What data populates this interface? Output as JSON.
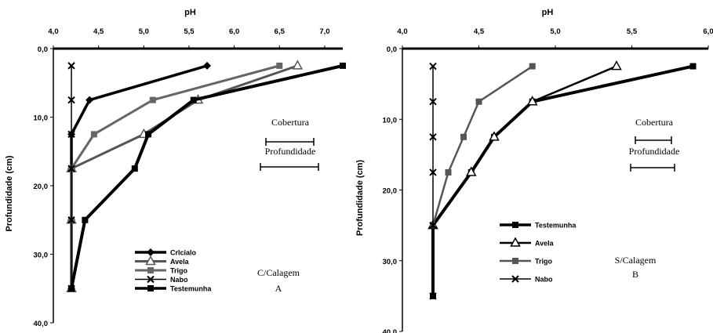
{
  "chart_data": [
    {
      "type": "line",
      "panel_label": "C/Calagem",
      "panel_letter": "A",
      "xlabel": "pH",
      "ylabel": "Profundidade (cm)",
      "xlim": [
        4.0,
        7.2
      ],
      "ylim": [
        0,
        40
      ],
      "xticks": [
        "4,0",
        "4,5",
        "5,0",
        "5,5",
        "6,0",
        "6,5",
        "7,0"
      ],
      "yticks": [
        "0,0",
        "10,0",
        "20,0",
        "30,0",
        "40,0"
      ],
      "annotation_top": "Cobertura",
      "annotation_bottom": "Profundidade",
      "series": [
        {
          "name": "Crlcialo",
          "marker": "diamond",
          "color": "#000000",
          "width": 3.5,
          "x": [
            5.7,
            4.4,
            4.2,
            4.2,
            4.2,
            4.2
          ],
          "y": [
            2.5,
            7.5,
            12.5,
            17.5,
            25,
            35
          ]
        },
        {
          "name": "Avela",
          "marker": "triangle",
          "color": "#555555",
          "width": 3,
          "x": [
            6.7,
            5.6,
            5.0,
            4.2,
            4.2,
            4.2
          ],
          "y": [
            2.5,
            7.5,
            12.5,
            17.5,
            25,
            35
          ]
        },
        {
          "name": "Trigo",
          "marker": "square",
          "color": "#666666",
          "width": 3,
          "x": [
            6.5,
            5.1,
            4.45,
            4.2,
            4.2,
            4.2
          ],
          "y": [
            2.5,
            7.5,
            12.5,
            17.5,
            25,
            35
          ]
        },
        {
          "name": "Nabo",
          "marker": "cross",
          "color": "#000000",
          "width": 1.5,
          "x": [
            4.2,
            4.2,
            4.2,
            4.2,
            4.2,
            4.2
          ],
          "y": [
            2.5,
            7.5,
            12.5,
            17.5,
            25,
            35
          ]
        },
        {
          "name": "Testemunha",
          "marker": "square",
          "color": "#000000",
          "width": 4,
          "x": [
            7.2,
            5.55,
            5.05,
            4.9,
            4.35,
            4.2
          ],
          "y": [
            2.5,
            7.5,
            12.5,
            17.5,
            25,
            35
          ]
        }
      ]
    },
    {
      "type": "line",
      "panel_label": "S/Calagem",
      "panel_letter": "B",
      "xlabel": "pH",
      "ylabel": "Profundidade (cm)",
      "xlim": [
        4.0,
        6.0
      ],
      "ylim": [
        0,
        40
      ],
      "xticks": [
        "4,0",
        "4,5",
        "5,0",
        "5,5",
        "6,0"
      ],
      "yticks": [
        "0,0",
        "10,0",
        "20,0",
        "30,0",
        "40,0"
      ],
      "annotation_top": "Cobertura",
      "annotation_bottom": "Profundidade",
      "series": [
        {
          "name": "Testemunha",
          "marker": "square",
          "color": "#000000",
          "width": 4,
          "x": [
            5.9,
            4.85,
            4.6,
            4.45,
            4.2,
            4.2
          ],
          "y": [
            2.5,
            7.5,
            12.5,
            17.5,
            25,
            35
          ]
        },
        {
          "name": "Avela",
          "marker": "triangle",
          "color": "#000000",
          "width": 2.5,
          "x": [
            5.4,
            4.85,
            4.6,
            4.45,
            4.2
          ],
          "y": [
            2.5,
            7.5,
            12.5,
            17.5,
            25
          ]
        },
        {
          "name": "Trigo",
          "marker": "square",
          "color": "#555555",
          "width": 2.5,
          "x": [
            4.85,
            4.5,
            4.4,
            4.3,
            4.2
          ],
          "y": [
            2.5,
            7.5,
            12.5,
            17.5,
            25
          ]
        },
        {
          "name": "Nabo",
          "marker": "cross",
          "color": "#000000",
          "width": 1.5,
          "x": [
            4.2,
            4.2,
            4.2,
            4.2,
            4.2,
            4.2
          ],
          "y": [
            2.5,
            7.5,
            12.5,
            17.5,
            25,
            35
          ]
        }
      ]
    }
  ]
}
